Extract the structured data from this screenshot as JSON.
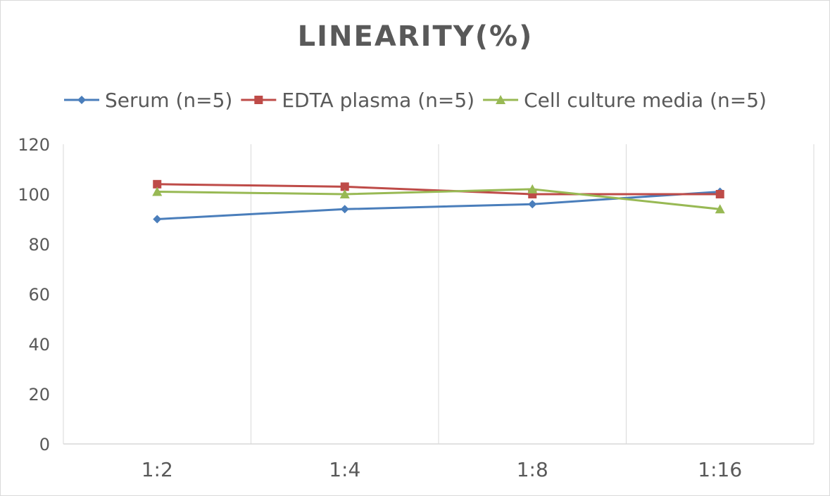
{
  "chart_data": {
    "type": "line",
    "title": "LINEARITY(%)",
    "categories": [
      "1:2",
      "1:4",
      "1:8",
      "1:16"
    ],
    "series": [
      {
        "name": "Serum (n=5)",
        "values": [
          90,
          94,
          96,
          101
        ],
        "color": "#4a7ebb",
        "marker": "diamond"
      },
      {
        "name": "EDTA plasma (n=5)",
        "values": [
          104,
          103,
          100,
          100
        ],
        "color": "#be4b48",
        "marker": "square"
      },
      {
        "name": "Cell culture media (n=5)",
        "values": [
          101,
          100,
          102,
          94
        ],
        "color": "#98b954",
        "marker": "triangle"
      }
    ],
    "xlabel": "",
    "ylabel": "",
    "ylim": [
      0,
      120
    ],
    "yticks": [
      0,
      20,
      40,
      60,
      80,
      100,
      120
    ],
    "grid": "vertical",
    "legend_position": "top"
  }
}
